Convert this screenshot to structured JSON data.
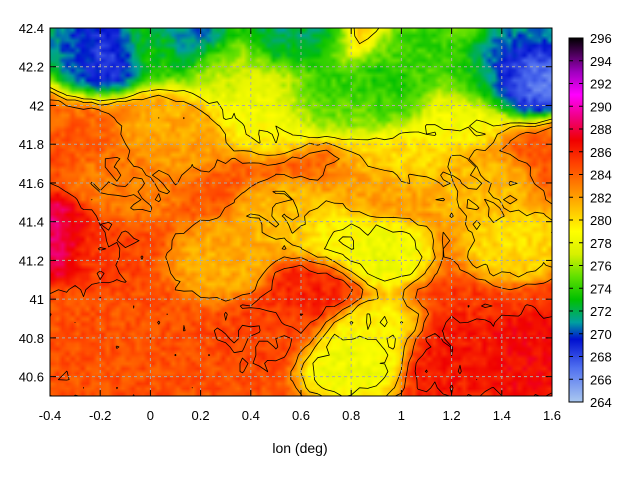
{
  "chart_data": {
    "type": "heatmap",
    "title": "",
    "xlabel": "lon (deg)",
    "ylabel": "",
    "xlim": [
      -0.4,
      1.6
    ],
    "ylim": [
      40.5,
      42.4
    ],
    "xticks": [
      "-0.4",
      "-0.2",
      "0",
      "0.2",
      "0.4",
      "0.6",
      "0.8",
      "1",
      "1.2",
      "1.4",
      "1.6"
    ],
    "yticks": [
      "40.6",
      "40.8",
      "41",
      "41.2",
      "41.4",
      "41.6",
      "41.8",
      "42",
      "42.2",
      "42.4"
    ],
    "grid": true,
    "colorbar": {
      "min": 264,
      "max": 296,
      "ticks": [
        "264",
        "266",
        "268",
        "270",
        "272",
        "274",
        "276",
        "278",
        "280",
        "282",
        "284",
        "286",
        "288",
        "290",
        "292",
        "294",
        "296"
      ],
      "stops": [
        {
          "v": 264,
          "color": "#aac8f0"
        },
        {
          "v": 267,
          "color": "#5070f0"
        },
        {
          "v": 269.5,
          "color": "#0010d0"
        },
        {
          "v": 271,
          "color": "#00a0a0"
        },
        {
          "v": 273,
          "color": "#00c000"
        },
        {
          "v": 275,
          "color": "#60e000"
        },
        {
          "v": 277,
          "color": "#d8f000"
        },
        {
          "v": 279,
          "color": "#ffff00"
        },
        {
          "v": 281,
          "color": "#ffc000"
        },
        {
          "v": 283,
          "color": "#ff8000"
        },
        {
          "v": 285,
          "color": "#ff4000"
        },
        {
          "v": 287,
          "color": "#f00000"
        },
        {
          "v": 289,
          "color": "#f00080"
        },
        {
          "v": 291,
          "color": "#ff00ff"
        },
        {
          "v": 293,
          "color": "#a000c0"
        },
        {
          "v": 296,
          "color": "#000000"
        }
      ]
    },
    "field_features": [
      {
        "lon": -0.2,
        "lat": 41.3,
        "temp": 285
      },
      {
        "lon": 0.5,
        "lat": 40.85,
        "temp": 285
      },
      {
        "lon": 0.65,
        "lat": 41.05,
        "temp": 286
      },
      {
        "lon": 1.2,
        "lat": 40.7,
        "temp": 285.5
      },
      {
        "lon": 1.5,
        "lat": 40.7,
        "temp": 286
      },
      {
        "lon": -0.39,
        "lat": 41.32,
        "temp": 289
      },
      {
        "lon": 0.8,
        "lat": 40.68,
        "temp": 278
      },
      {
        "lon": 0.88,
        "lat": 40.82,
        "temp": 279
      },
      {
        "lon": 0.55,
        "lat": 41.4,
        "temp": 281
      },
      {
        "lon": 0.75,
        "lat": 41.33,
        "temp": 279
      },
      {
        "lon": 0.3,
        "lat": 41.2,
        "temp": 281.5
      },
      {
        "lon": 0.9,
        "lat": 41.25,
        "temp": 278
      },
      {
        "lon": 1.0,
        "lat": 41.75,
        "temp": 280
      },
      {
        "lon": 1.3,
        "lat": 41.55,
        "temp": 281
      },
      {
        "lon": 1.45,
        "lat": 41.3,
        "temp": 280
      },
      {
        "lon": 0.5,
        "lat": 42.05,
        "temp": 279
      },
      {
        "lon": 0.9,
        "lat": 42.0,
        "temp": 276
      },
      {
        "lon": 0.95,
        "lat": 42.05,
        "temp": 274
      },
      {
        "lon": 0.65,
        "lat": 42.05,
        "temp": 275
      },
      {
        "lon": 0.3,
        "lat": 42.2,
        "temp": 278
      },
      {
        "lon": 0.0,
        "lat": 42.32,
        "temp": 276
      },
      {
        "lon": -0.25,
        "lat": 42.3,
        "temp": 273
      },
      {
        "lon": -0.18,
        "lat": 42.28,
        "temp": 268
      },
      {
        "lon": 0.15,
        "lat": 42.33,
        "temp": 272
      },
      {
        "lon": 0.55,
        "lat": 42.35,
        "temp": 274
      },
      {
        "lon": 1.1,
        "lat": 42.25,
        "temp": 276
      },
      {
        "lon": 1.3,
        "lat": 42.15,
        "temp": 275
      },
      {
        "lon": 1.45,
        "lat": 42.17,
        "temp": 270
      },
      {
        "lon": 1.52,
        "lat": 42.17,
        "temp": 266
      },
      {
        "lon": 1.5,
        "lat": 42.3,
        "temp": 273
      },
      {
        "lon": 0.45,
        "lat": 41.95,
        "temp": 279
      },
      {
        "lon": 1.2,
        "lat": 41.95,
        "temp": 279
      },
      {
        "lon": 0.1,
        "lat": 41.85,
        "temp": 282
      },
      {
        "lon": -0.1,
        "lat": 41.55,
        "temp": 283
      },
      {
        "lon": 0.9,
        "lat": 41.55,
        "temp": 282
      }
    ],
    "contour_levels": [
      279,
      281,
      283,
      285
    ]
  }
}
